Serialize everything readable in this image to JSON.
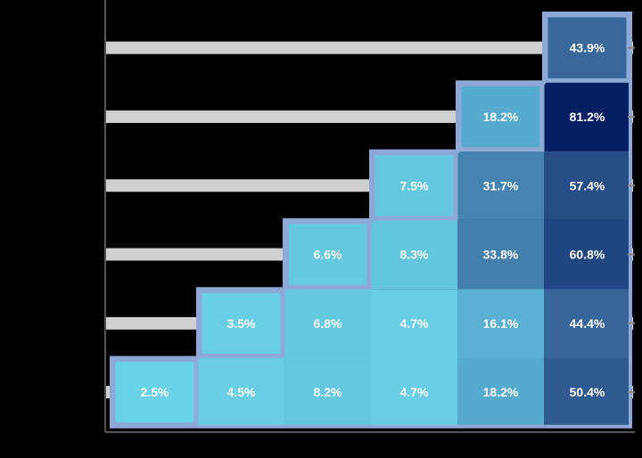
{
  "chart_data": {
    "type": "heatmap",
    "title": "",
    "xlabel": "",
    "ylabel": "",
    "rows": 6,
    "cols": 6,
    "x_tick_labels": [
      "",
      "",
      "",
      "",
      "",
      ""
    ],
    "y_tick_labels": [
      "",
      "",
      "",
      "",
      "",
      ""
    ],
    "cells": [
      {
        "row": 0,
        "col": 5,
        "value": 43.9,
        "label": "43.9%"
      },
      {
        "row": 1,
        "col": 4,
        "value": 18.2,
        "label": "18.2%"
      },
      {
        "row": 1,
        "col": 5,
        "value": 81.2,
        "label": "81.2%"
      },
      {
        "row": 2,
        "col": 3,
        "value": 7.5,
        "label": "7.5%"
      },
      {
        "row": 2,
        "col": 4,
        "value": 31.7,
        "label": "31.7%"
      },
      {
        "row": 2,
        "col": 5,
        "value": 57.4,
        "label": "57.4%"
      },
      {
        "row": 3,
        "col": 2,
        "value": 6.6,
        "label": "6.6%"
      },
      {
        "row": 3,
        "col": 3,
        "value": 8.3,
        "label": "8.3%"
      },
      {
        "row": 3,
        "col": 4,
        "value": 33.8,
        "label": "33.8%"
      },
      {
        "row": 3,
        "col": 5,
        "value": 60.8,
        "label": "60.8%"
      },
      {
        "row": 4,
        "col": 1,
        "value": 3.5,
        "label": "3.5%"
      },
      {
        "row": 4,
        "col": 2,
        "value": 6.8,
        "label": "6.8%"
      },
      {
        "row": 4,
        "col": 3,
        "value": 4.7,
        "label": "4.7%"
      },
      {
        "row": 4,
        "col": 4,
        "value": 16.1,
        "label": "16.1%"
      },
      {
        "row": 4,
        "col": 5,
        "value": 44.4,
        "label": "44.4%"
      },
      {
        "row": 5,
        "col": 0,
        "value": 2.5,
        "label": "2.5%"
      },
      {
        "row": 5,
        "col": 1,
        "value": 4.5,
        "label": "4.5%"
      },
      {
        "row": 5,
        "col": 2,
        "value": 8.2,
        "label": "8.2%"
      },
      {
        "row": 5,
        "col": 3,
        "value": 4.7,
        "label": "4.7%"
      },
      {
        "row": 5,
        "col": 4,
        "value": 18.2,
        "label": "18.2%"
      },
      {
        "row": 5,
        "col": 5,
        "value": 50.4,
        "label": "50.4%"
      }
    ],
    "grid": true,
    "legend": false
  },
  "colors": {
    "background": "#000000",
    "gridline": "#d0d0d0",
    "axis": "#555555",
    "outline": "#8fa9d6",
    "cell_text": "#ffffff",
    "tick_mark": "#888888"
  }
}
